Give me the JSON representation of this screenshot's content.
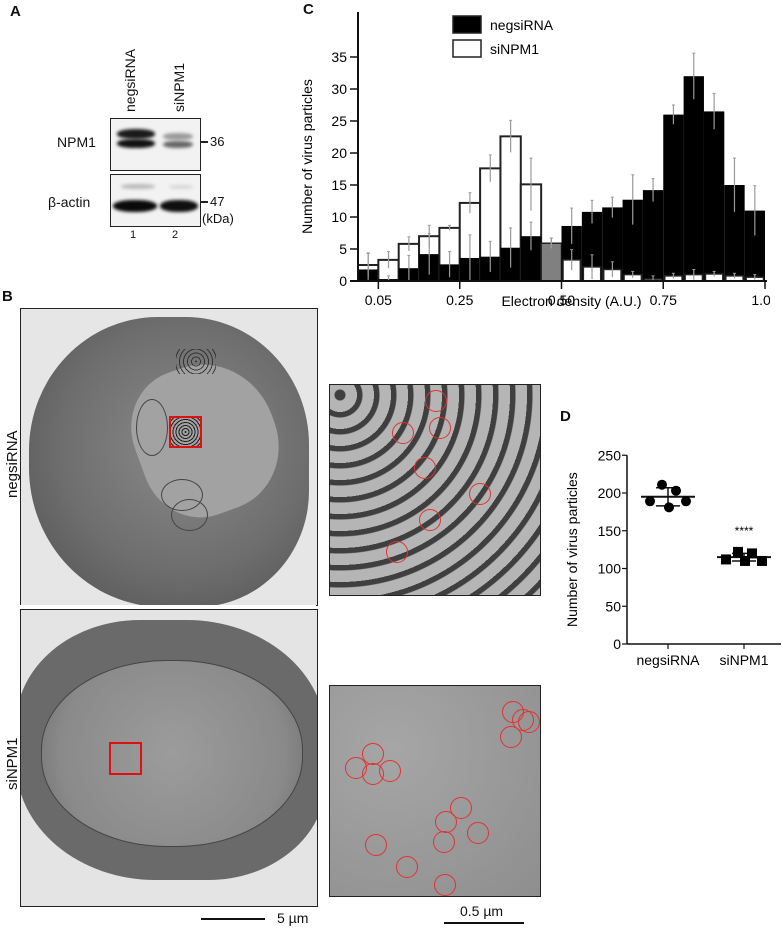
{
  "panels": {
    "A": {
      "label": "A",
      "lanes": [
        "negsiRNA",
        "siNPM1"
      ],
      "lane_numbers": [
        "1",
        "2"
      ],
      "rows": [
        {
          "protein": "NPM1",
          "marker": "36"
        },
        {
          "protein": "β-actin",
          "marker": "47"
        }
      ],
      "unit": "(kDa)"
    },
    "B": {
      "label": "B",
      "rows": [
        "negsiRNA",
        "siNPM1"
      ],
      "scale_bar_overview": "5 µm",
      "scale_bar_zoom": "0.5 µm",
      "highlight_color": "#e01010"
    },
    "C": {
      "label": "C"
    },
    "D": {
      "label": "D"
    }
  },
  "chart_data": [
    {
      "type": "bar",
      "panel": "C",
      "title": "",
      "xlabel": "Electron density (A.U.)",
      "ylabel": "Number of virus particles",
      "xlim": [
        0.0,
        1.0
      ],
      "ylim": [
        0,
        39
      ],
      "xticks": [
        "0.05",
        "0.25",
        "0.50",
        "0.75",
        "1.00"
      ],
      "yticks": [
        0,
        5,
        10,
        15,
        20,
        25,
        30,
        35
      ],
      "legend": {
        "position": "top-left",
        "entries": [
          {
            "name": "negsiRNA",
            "color": "#000000"
          },
          {
            "name": "siNPM1",
            "color": "#ffffff"
          }
        ]
      },
      "overlap_color": "#808080",
      "bin_width": 0.05,
      "categories": [
        0.025,
        0.075,
        0.125,
        0.175,
        0.225,
        0.275,
        0.325,
        0.375,
        0.425,
        0.475,
        0.525,
        0.575,
        0.625,
        0.675,
        0.725,
        0.775,
        0.825,
        0.875,
        0.925,
        0.975
      ],
      "series": [
        {
          "name": "negsiRNA",
          "values": [
            1.8,
            0.3,
            2.0,
            4.2,
            2.6,
            3.6,
            3.8,
            5.2,
            7.0,
            5.9,
            8.6,
            10.8,
            11.5,
            12.7,
            14.2,
            26.0,
            32.0,
            26.5,
            15.0,
            11.0
          ],
          "errors": [
            2.5,
            0.5,
            2.0,
            3.2,
            2.0,
            3.6,
            2.4,
            3.1,
            2.2,
            0.8,
            2.8,
            1.8,
            1.6,
            3.9,
            1.8,
            1.5,
            3.6,
            2.8,
            4.2,
            3.9
          ]
        },
        {
          "name": "siNPM1",
          "values": [
            2.5,
            3.3,
            5.8,
            7.0,
            8.3,
            12.2,
            17.6,
            22.6,
            15.1,
            5.9,
            3.3,
            2.2,
            1.8,
            1.0,
            0.3,
            0.8,
            1.0,
            1.1,
            0.8,
            0.6
          ],
          "errors": [
            1.9,
            1.3,
            1.1,
            1.7,
            0.4,
            1.6,
            2.1,
            2.5,
            4.1,
            0.8,
            1.6,
            1.9,
            1.2,
            0.5,
            0.5,
            0.4,
            0.8,
            0.4,
            0.4,
            0.4
          ]
        }
      ]
    },
    {
      "type": "scatter",
      "panel": "D",
      "title": "",
      "xlabel": "",
      "ylabel": "Number of virus particles",
      "ylim": [
        0,
        250
      ],
      "yticks": [
        0,
        50,
        100,
        150,
        200,
        250
      ],
      "categories": [
        "negsiRNA",
        "siNPM1"
      ],
      "series": [
        {
          "name": "negsiRNA",
          "marker": "circle",
          "values": [
            211,
            203,
            189,
            189,
            181
          ],
          "mean": 195,
          "sd": 12
        },
        {
          "name": "siNPM1",
          "marker": "square",
          "values": [
            122,
            120,
            112,
            110,
            110
          ],
          "mean": 115,
          "sd": 5
        }
      ],
      "annotation": "****"
    }
  ]
}
